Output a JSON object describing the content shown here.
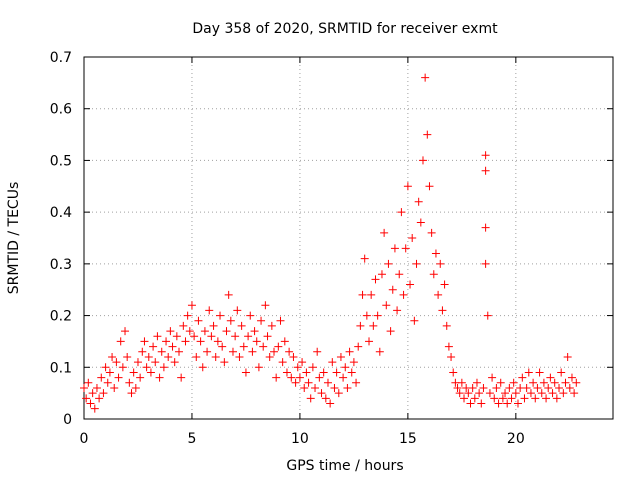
{
  "chart_data": {
    "type": "scatter",
    "title": "Day 358 of 2020, SRMTID for receiver exmt",
    "xlabel": "GPS time / hours",
    "ylabel": "SRMTID / TECUs",
    "xlim": [
      0,
      24.5
    ],
    "ylim": [
      0,
      0.7
    ],
    "xticks": [
      0,
      5,
      10,
      15,
      20
    ],
    "yticks": [
      0,
      0.1,
      0.2,
      0.3,
      0.4,
      0.5,
      0.6,
      0.7
    ],
    "xtick_labels": [
      "0",
      "5",
      "10",
      "15",
      "20"
    ],
    "ytick_labels": [
      "0",
      "0.1",
      "0.2",
      "0.3",
      "0.4",
      "0.5",
      "0.6",
      "0.7"
    ],
    "grid": true,
    "marker": "+",
    "color": "#ff0000",
    "series": [
      {
        "name": "SRMTID",
        "points": [
          [
            0.0,
            0.06
          ],
          [
            0.1,
            0.04
          ],
          [
            0.2,
            0.07
          ],
          [
            0.3,
            0.03
          ],
          [
            0.4,
            0.05
          ],
          [
            0.5,
            0.02
          ],
          [
            0.6,
            0.06
          ],
          [
            0.7,
            0.04
          ],
          [
            0.8,
            0.08
          ],
          [
            0.9,
            0.05
          ],
          [
            1.0,
            0.1
          ],
          [
            1.1,
            0.07
          ],
          [
            1.2,
            0.09
          ],
          [
            1.3,
            0.12
          ],
          [
            1.4,
            0.06
          ],
          [
            1.5,
            0.11
          ],
          [
            1.6,
            0.08
          ],
          [
            1.7,
            0.15
          ],
          [
            1.8,
            0.1
          ],
          [
            1.9,
            0.17
          ],
          [
            2.0,
            0.12
          ],
          [
            2.1,
            0.07
          ],
          [
            2.2,
            0.05
          ],
          [
            2.3,
            0.09
          ],
          [
            2.4,
            0.06
          ],
          [
            2.5,
            0.11
          ],
          [
            2.6,
            0.08
          ],
          [
            2.7,
            0.13
          ],
          [
            2.8,
            0.15
          ],
          [
            2.9,
            0.1
          ],
          [
            3.0,
            0.12
          ],
          [
            3.1,
            0.09
          ],
          [
            3.2,
            0.14
          ],
          [
            3.3,
            0.11
          ],
          [
            3.4,
            0.16
          ],
          [
            3.5,
            0.08
          ],
          [
            3.6,
            0.13
          ],
          [
            3.7,
            0.1
          ],
          [
            3.8,
            0.15
          ],
          [
            3.9,
            0.12
          ],
          [
            4.0,
            0.17
          ],
          [
            4.1,
            0.14
          ],
          [
            4.2,
            0.11
          ],
          [
            4.3,
            0.16
          ],
          [
            4.4,
            0.13
          ],
          [
            4.5,
            0.08
          ],
          [
            4.6,
            0.18
          ],
          [
            4.7,
            0.15
          ],
          [
            4.8,
            0.2
          ],
          [
            4.9,
            0.17
          ],
          [
            5.0,
            0.22
          ],
          [
            5.1,
            0.16
          ],
          [
            5.2,
            0.12
          ],
          [
            5.3,
            0.19
          ],
          [
            5.4,
            0.15
          ],
          [
            5.5,
            0.1
          ],
          [
            5.6,
            0.17
          ],
          [
            5.7,
            0.13
          ],
          [
            5.8,
            0.21
          ],
          [
            5.9,
            0.16
          ],
          [
            6.0,
            0.18
          ],
          [
            6.1,
            0.12
          ],
          [
            6.2,
            0.15
          ],
          [
            6.3,
            0.2
          ],
          [
            6.4,
            0.14
          ],
          [
            6.5,
            0.11
          ],
          [
            6.6,
            0.17
          ],
          [
            6.7,
            0.24
          ],
          [
            6.8,
            0.19
          ],
          [
            6.9,
            0.13
          ],
          [
            7.0,
            0.16
          ],
          [
            7.1,
            0.21
          ],
          [
            7.2,
            0.12
          ],
          [
            7.3,
            0.18
          ],
          [
            7.4,
            0.14
          ],
          [
            7.5,
            0.09
          ],
          [
            7.6,
            0.16
          ],
          [
            7.7,
            0.2
          ],
          [
            7.8,
            0.13
          ],
          [
            7.9,
            0.17
          ],
          [
            8.0,
            0.15
          ],
          [
            8.1,
            0.1
          ],
          [
            8.2,
            0.19
          ],
          [
            8.3,
            0.14
          ],
          [
            8.4,
            0.22
          ],
          [
            8.5,
            0.16
          ],
          [
            8.6,
            0.12
          ],
          [
            8.7,
            0.18
          ],
          [
            8.8,
            0.13
          ],
          [
            8.9,
            0.08
          ],
          [
            9.0,
            0.14
          ],
          [
            9.1,
            0.19
          ],
          [
            9.2,
            0.11
          ],
          [
            9.3,
            0.15
          ],
          [
            9.4,
            0.09
          ],
          [
            9.5,
            0.13
          ],
          [
            9.6,
            0.08
          ],
          [
            9.7,
            0.12
          ],
          [
            9.8,
            0.07
          ],
          [
            9.9,
            0.1
          ],
          [
            10.0,
            0.08
          ],
          [
            10.1,
            0.11
          ],
          [
            10.2,
            0.06
          ],
          [
            10.3,
            0.09
          ],
          [
            10.4,
            0.07
          ],
          [
            10.5,
            0.04
          ],
          [
            10.6,
            0.1
          ],
          [
            10.7,
            0.06
          ],
          [
            10.8,
            0.13
          ],
          [
            10.9,
            0.08
          ],
          [
            11.0,
            0.05
          ],
          [
            11.1,
            0.09
          ],
          [
            11.2,
            0.04
          ],
          [
            11.3,
            0.07
          ],
          [
            11.4,
            0.03
          ],
          [
            11.5,
            0.11
          ],
          [
            11.6,
            0.06
          ],
          [
            11.7,
            0.09
          ],
          [
            11.8,
            0.05
          ],
          [
            11.9,
            0.12
          ],
          [
            12.0,
            0.08
          ],
          [
            12.1,
            0.1
          ],
          [
            12.2,
            0.06
          ],
          [
            12.3,
            0.13
          ],
          [
            12.4,
            0.09
          ],
          [
            12.5,
            0.11
          ],
          [
            12.6,
            0.07
          ],
          [
            12.7,
            0.14
          ],
          [
            12.8,
            0.18
          ],
          [
            12.9,
            0.24
          ],
          [
            13.0,
            0.31
          ],
          [
            13.1,
            0.2
          ],
          [
            13.2,
            0.15
          ],
          [
            13.3,
            0.24
          ],
          [
            13.4,
            0.18
          ],
          [
            13.5,
            0.27
          ],
          [
            13.6,
            0.2
          ],
          [
            13.7,
            0.13
          ],
          [
            13.8,
            0.28
          ],
          [
            13.9,
            0.36
          ],
          [
            14.0,
            0.22
          ],
          [
            14.1,
            0.3
          ],
          [
            14.2,
            0.17
          ],
          [
            14.3,
            0.25
          ],
          [
            14.4,
            0.33
          ],
          [
            14.5,
            0.21
          ],
          [
            14.6,
            0.28
          ],
          [
            14.7,
            0.4
          ],
          [
            14.8,
            0.24
          ],
          [
            14.9,
            0.33
          ],
          [
            15.0,
            0.45
          ],
          [
            15.1,
            0.26
          ],
          [
            15.2,
            0.35
          ],
          [
            15.3,
            0.19
          ],
          [
            15.4,
            0.3
          ],
          [
            15.5,
            0.42
          ],
          [
            15.6,
            0.38
          ],
          [
            15.7,
            0.5
          ],
          [
            15.8,
            0.66
          ],
          [
            15.9,
            0.55
          ],
          [
            16.0,
            0.45
          ],
          [
            16.1,
            0.36
          ],
          [
            16.2,
            0.28
          ],
          [
            16.3,
            0.32
          ],
          [
            16.4,
            0.24
          ],
          [
            16.5,
            0.3
          ],
          [
            16.6,
            0.21
          ],
          [
            16.7,
            0.26
          ],
          [
            16.8,
            0.18
          ],
          [
            16.9,
            0.14
          ],
          [
            17.0,
            0.12
          ],
          [
            17.1,
            0.09
          ],
          [
            17.2,
            0.07
          ],
          [
            17.3,
            0.06
          ],
          [
            17.4,
            0.05
          ],
          [
            17.5,
            0.07
          ],
          [
            17.6,
            0.04
          ],
          [
            17.7,
            0.06
          ],
          [
            17.8,
            0.05
          ],
          [
            17.9,
            0.03
          ],
          [
            18.0,
            0.06
          ],
          [
            18.1,
            0.04
          ],
          [
            18.2,
            0.07
          ],
          [
            18.3,
            0.05
          ],
          [
            18.4,
            0.03
          ],
          [
            18.5,
            0.06
          ],
          [
            18.6,
            0.51
          ],
          [
            18.6,
            0.48
          ],
          [
            18.6,
            0.37
          ],
          [
            18.6,
            0.3
          ],
          [
            18.7,
            0.2
          ],
          [
            18.8,
            0.05
          ],
          [
            18.9,
            0.08
          ],
          [
            19.0,
            0.04
          ],
          [
            19.1,
            0.06
          ],
          [
            19.2,
            0.03
          ],
          [
            19.3,
            0.07
          ],
          [
            19.4,
            0.04
          ],
          [
            19.5,
            0.05
          ],
          [
            19.6,
            0.03
          ],
          [
            19.7,
            0.06
          ],
          [
            19.8,
            0.04
          ],
          [
            19.9,
            0.07
          ],
          [
            20.0,
            0.05
          ],
          [
            20.1,
            0.03
          ],
          [
            20.2,
            0.06
          ],
          [
            20.3,
            0.08
          ],
          [
            20.4,
            0.04
          ],
          [
            20.5,
            0.06
          ],
          [
            20.6,
            0.09
          ],
          [
            20.7,
            0.05
          ],
          [
            20.8,
            0.07
          ],
          [
            20.9,
            0.04
          ],
          [
            21.0,
            0.06
          ],
          [
            21.1,
            0.09
          ],
          [
            21.2,
            0.05
          ],
          [
            21.3,
            0.07
          ],
          [
            21.4,
            0.04
          ],
          [
            21.5,
            0.06
          ],
          [
            21.6,
            0.08
          ],
          [
            21.7,
            0.05
          ],
          [
            21.8,
            0.07
          ],
          [
            21.9,
            0.04
          ],
          [
            22.0,
            0.06
          ],
          [
            22.1,
            0.09
          ],
          [
            22.2,
            0.05
          ],
          [
            22.3,
            0.07
          ],
          [
            22.4,
            0.12
          ],
          [
            22.5,
            0.06
          ],
          [
            22.6,
            0.08
          ],
          [
            22.7,
            0.05
          ],
          [
            22.8,
            0.07
          ]
        ]
      }
    ]
  }
}
